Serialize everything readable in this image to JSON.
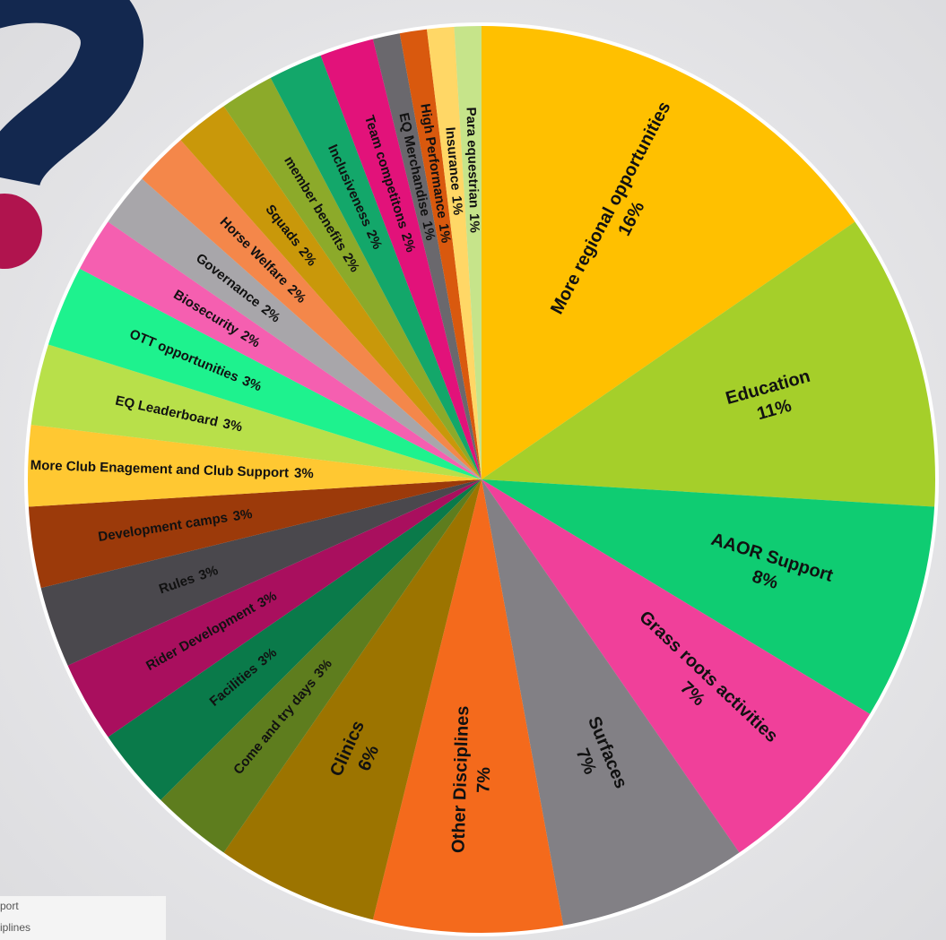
{
  "chart_data": {
    "type": "pie",
    "categories": [
      "More regional opportunities",
      "Education",
      "AAOR Support",
      "Grass roots activities",
      "Surfaces",
      "Other Disciplines",
      "Clinics",
      "Come and try days",
      "Facilities",
      "Rider Development",
      "Rules",
      "Development camps",
      "More Club Enagement and Club Support",
      "EQ Leaderboard",
      "OTT opportunities",
      "Biosecurity",
      "Governance",
      "Horse Welfare",
      "Squads",
      "member benefits",
      "Inclusiveness",
      "Team competitons",
      "EQ Merchandise",
      "High Performance",
      "Insurance",
      "Para equestrian"
    ],
    "values": [
      16,
      11,
      8,
      7,
      7,
      7,
      6,
      3,
      3,
      3,
      3,
      3,
      3,
      3,
      3,
      2,
      2,
      2,
      2,
      2,
      2,
      2,
      1,
      1,
      1,
      1
    ],
    "value_labels": [
      "16%",
      "11%",
      "8%",
      "7%",
      "7%",
      "7%",
      "6%",
      "3%",
      "3%",
      "3%",
      "3%",
      "3%",
      "3%",
      "3%",
      "3%",
      "2%",
      "2%",
      "2%",
      "2%",
      "2%",
      "2%",
      "2%",
      "1%",
      "1%",
      "1%",
      "1%"
    ],
    "colors": [
      "#ffc000",
      "#a5cf2a",
      "#0fcc72",
      "#f0409a",
      "#828085",
      "#f46a1c",
      "#9c7400",
      "#5e7d1e",
      "#0a7a4a",
      "#a90f5e",
      "#4a484d",
      "#9c3a0a",
      "#ffc832",
      "#b8e04a",
      "#1ef28e",
      "#f55fb0",
      "#a8a6aa",
      "#f4874a",
      "#c9980a",
      "#8caa2a",
      "#13a76a",
      "#e2127a",
      "#6a686d",
      "#d9590e",
      "#ffd766",
      "#c6e48a"
    ],
    "annotations": [
      "port",
      "iplines"
    ]
  }
}
